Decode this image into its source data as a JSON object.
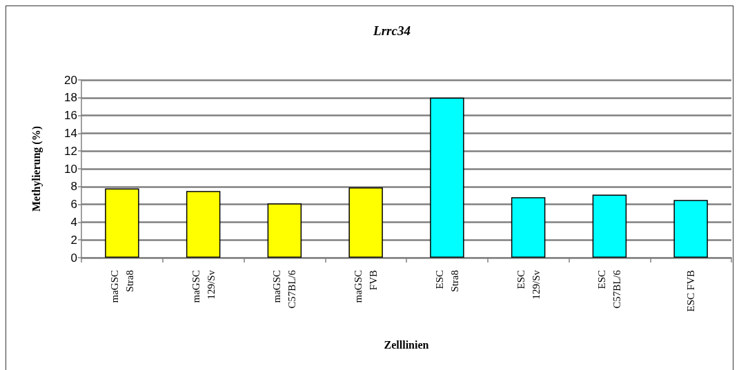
{
  "chart_data": {
    "type": "bar",
    "title": "Lrrc34",
    "xlabel": "Zelllinien",
    "ylabel": "Methylierung (%)",
    "categories": [
      "maGSC\nStra8",
      "maGSC\n129/Sv",
      "maGSC\nC57BL/6",
      "maGSC\nFVB",
      "ESC\nStra8",
      "ESC\n129/Sv",
      "ESC\nC57BL/6",
      "ESC FVB"
    ],
    "values": [
      7.8,
      7.5,
      6.1,
      7.9,
      18.0,
      6.8,
      7.1,
      6.5
    ],
    "colors": [
      "#ffff00",
      "#ffff00",
      "#ffff00",
      "#ffff00",
      "#00ffff",
      "#00ffff",
      "#00ffff",
      "#00ffff"
    ],
    "ylim": [
      0,
      20
    ],
    "yticks": [
      0,
      2,
      4,
      6,
      8,
      10,
      12,
      14,
      16,
      18,
      20
    ],
    "grid": "y"
  }
}
